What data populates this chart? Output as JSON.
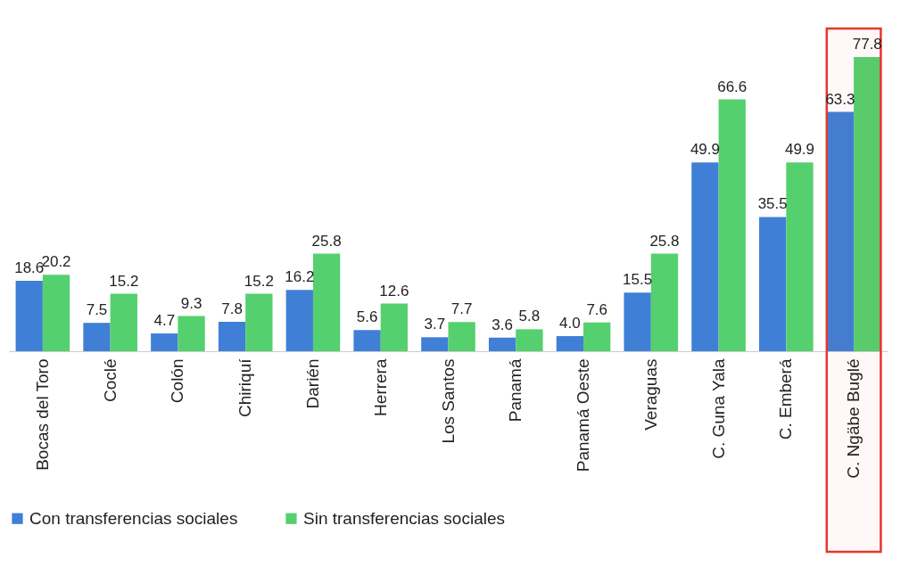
{
  "chart_data": {
    "type": "bar",
    "categories": [
      "Bocas del Toro",
      "Coclé",
      "Colón",
      "Chiriquí",
      "Darién",
      "Herrera",
      "Los Santos",
      "Panamá",
      "Panamá Oeste",
      "Veraguas",
      "C. Guna Yala",
      "C. Emberá",
      "C. Ngäbe Buglé"
    ],
    "series": [
      {
        "name": "Con transferencias sociales",
        "color": "#3f7fd6",
        "values": [
          18.6,
          7.5,
          4.7,
          7.8,
          16.2,
          5.6,
          3.7,
          3.6,
          4.0,
          15.5,
          49.9,
          35.5,
          63.3
        ],
        "value_labels": [
          "18.6",
          "7.5",
          "4.7",
          "7.8",
          "16.2",
          "5.6",
          "3.7",
          "3.6",
          "4.0",
          "15.5",
          "49.9",
          "35.5",
          "63.3"
        ]
      },
      {
        "name": "Sin transferencias sociales",
        "color": "#55d06e",
        "values": [
          20.2,
          15.2,
          9.3,
          15.2,
          25.8,
          12.6,
          7.7,
          5.8,
          7.6,
          25.8,
          66.6,
          49.9,
          77.8
        ],
        "value_labels": [
          "20.2",
          "15.2",
          "9.3",
          "15.2",
          "25.8",
          "12.6",
          "7.7",
          "5.8",
          "7.6",
          "25.8",
          "66.6",
          "49.9",
          "77.8"
        ]
      }
    ],
    "legend": "bottom",
    "bands": [
      {
        "axis": "x",
        "from": "C. Ngäbe Buglé",
        "to": "C. Ngäbe Buglé",
        "color": "#e8352b"
      }
    ]
  }
}
